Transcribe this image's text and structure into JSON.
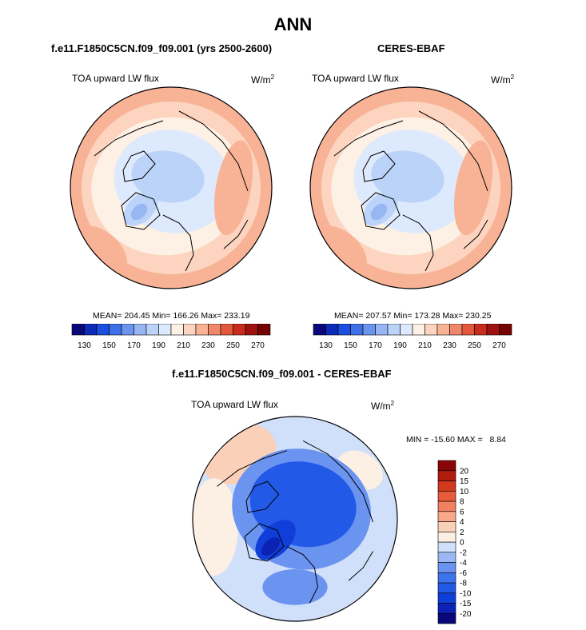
{
  "page": {
    "title": "ANN"
  },
  "panels": [
    {
      "title": "f.e11.F1850C5CN.f09_f09.001 (yrs 2500-2600)",
      "variable": "TOA upward LW flux",
      "units_base": "W/m",
      "units_exp": "2",
      "stats": "MEAN= 204.45  Min= 166.26  Max= 233.19"
    },
    {
      "title": "CERES-EBAF",
      "variable": "TOA upward LW flux",
      "units_base": "W/m",
      "units_exp": "2",
      "stats": "MEAN= 207.57  Min= 173.28  Max= 230.25"
    },
    {
      "title": "f.e11.F1850C5CN.f09_f09.001 - CERES-EBAF",
      "variable": "TOA upward LW flux",
      "units_base": "W/m",
      "units_exp": "2",
      "stats": "MIN = -15.60 MAX =   8.84"
    }
  ],
  "chart_data": [
    {
      "type": "heatmap",
      "projection": "north polar stereographic",
      "title": "f.e11.F1850C5CN.f09_f09.001 (yrs 2500-2600)",
      "variable": "TOA upward LW flux",
      "units": "W/m2",
      "mean": 204.45,
      "min": 166.26,
      "max": 233.19,
      "levels": [
        130,
        140,
        150,
        160,
        170,
        180,
        190,
        200,
        210,
        220,
        230,
        240,
        250,
        260,
        270
      ],
      "colorbar_ticks": [
        "130",
        "150",
        "170",
        "190",
        "210",
        "230",
        "250",
        "270"
      ],
      "colors": [
        "#08087a",
        "#0c2ab8",
        "#1b4ee0",
        "#3e70e8",
        "#6b94ef",
        "#98b6f4",
        "#bcd3f9",
        "#dde9fc",
        "#fdf0e4",
        "#fcd4bf",
        "#f8b396",
        "#f1876a",
        "#e3573d",
        "#c92c1e",
        "#a01212",
        "#760303"
      ]
    },
    {
      "type": "heatmap",
      "projection": "north polar stereographic",
      "title": "CERES-EBAF",
      "variable": "TOA upward LW flux",
      "units": "W/m2",
      "mean": 207.57,
      "min": 173.28,
      "max": 230.25,
      "levels": [
        130,
        140,
        150,
        160,
        170,
        180,
        190,
        200,
        210,
        220,
        230,
        240,
        250,
        260,
        270
      ],
      "colorbar_ticks": [
        "130",
        "150",
        "170",
        "190",
        "210",
        "230",
        "250",
        "270"
      ],
      "colors": [
        "#08087a",
        "#0c2ab8",
        "#1b4ee0",
        "#3e70e8",
        "#6b94ef",
        "#98b6f4",
        "#bcd3f9",
        "#dde9fc",
        "#fdf0e4",
        "#fcd4bf",
        "#f8b396",
        "#f1876a",
        "#e3573d",
        "#c92c1e",
        "#a01212",
        "#760303"
      ]
    },
    {
      "type": "heatmap",
      "projection": "north polar stereographic",
      "title": "f.e11.F1850C5CN.f09_f09.001 - CERES-EBAF",
      "variable": "TOA upward LW flux",
      "units": "W/m2",
      "min": -15.6,
      "max": 8.84,
      "levels": [
        -20,
        -15,
        -10,
        -8,
        -6,
        -4,
        -2,
        0,
        2,
        4,
        6,
        8,
        10,
        15,
        20
      ],
      "colorbar_ticks": [
        "-20",
        "-15",
        "-10",
        "-8",
        "-6",
        "-4",
        "-2",
        "0",
        "2",
        "4",
        "6",
        "8",
        "10",
        "15",
        "20"
      ],
      "colors": [
        "#08087a",
        "#0c22b4",
        "#0f3fd8",
        "#2259e6",
        "#3f73ec",
        "#6b93f0",
        "#9cb8f4",
        "#d0e0fb",
        "#fcefe4",
        "#fbd0b8",
        "#f7a98a",
        "#f0805f",
        "#e65b3a",
        "#d23a20",
        "#b01c0f",
        "#8a0606"
      ]
    }
  ]
}
